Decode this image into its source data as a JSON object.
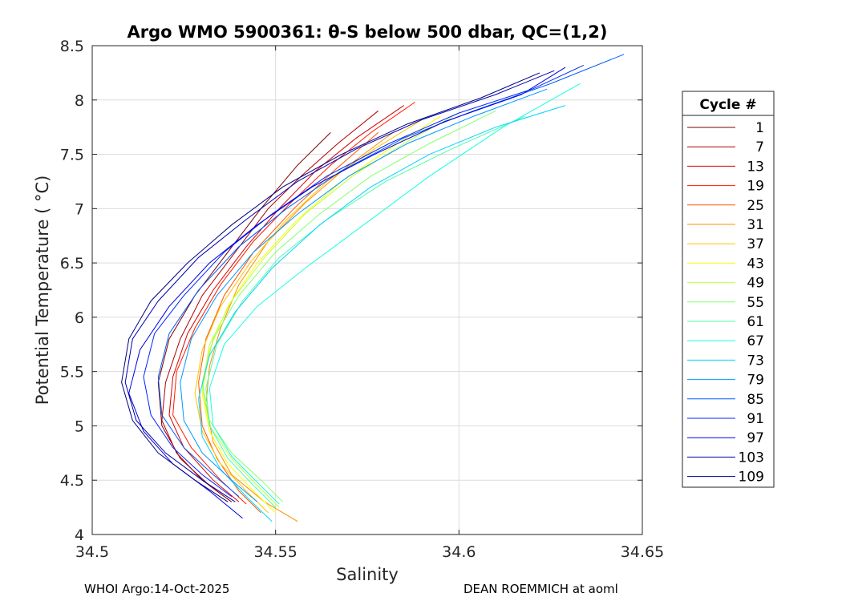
{
  "chart_data": {
    "type": "line",
    "title": "Argo WMO 5900361: θ-S below 500 dbar,  QC=(1,2)",
    "xlabel": "Salinity",
    "ylabel": "Potential Temperature ( °C)",
    "xlim": [
      34.5,
      34.65
    ],
    "ylim": [
      4,
      8.5
    ],
    "xticks": [
      34.5,
      34.55,
      34.6,
      34.65
    ],
    "xtick_labels": [
      "34.5",
      "34.55",
      "34.6",
      "34.65"
    ],
    "yticks": [
      4,
      4.5,
      5,
      5.5,
      6,
      6.5,
      7,
      7.5,
      8,
      8.5
    ],
    "ytick_labels": [
      "4",
      "4.5",
      "5",
      "5.5",
      "6",
      "6.5",
      "7",
      "7.5",
      "8",
      "8.5"
    ],
    "grid": true,
    "legend": {
      "title": "Cycle #",
      "position": "right",
      "entries": [
        {
          "label": "1",
          "color": "#7f0000"
        },
        {
          "label": "7",
          "color": "#b00000"
        },
        {
          "label": "13",
          "color": "#d80000"
        },
        {
          "label": "19",
          "color": "#ff1a00"
        },
        {
          "label": "25",
          "color": "#ff5500"
        },
        {
          "label": "31",
          "color": "#ff8c00"
        },
        {
          "label": "37",
          "color": "#ffc400"
        },
        {
          "label": "43",
          "color": "#f5ff00"
        },
        {
          "label": "49",
          "color": "#bfff3a"
        },
        {
          "label": "55",
          "color": "#86ff70"
        },
        {
          "label": "61",
          "color": "#4dffa8"
        },
        {
          "label": "67",
          "color": "#16ffe0"
        },
        {
          "label": "73",
          "color": "#00d4ff"
        },
        {
          "label": "79",
          "color": "#0098ff"
        },
        {
          "label": "85",
          "color": "#005cff"
        },
        {
          "label": "91",
          "color": "#0024ff"
        },
        {
          "label": "97",
          "color": "#0000e0"
        },
        {
          "label": "103",
          "color": "#0000b0"
        },
        {
          "label": "109",
          "color": "#00007f"
        }
      ]
    },
    "series": [
      {
        "name": "1",
        "color": "#7f0000",
        "x": [
          34.538,
          34.532,
          34.524,
          34.519,
          34.518,
          34.521,
          34.528,
          34.537,
          34.546,
          34.556,
          34.565
        ],
        "y": [
          4.3,
          4.45,
          4.7,
          5.0,
          5.4,
          5.8,
          6.2,
          6.6,
          7.0,
          7.4,
          7.7
        ]
      },
      {
        "name": "7",
        "color": "#b00000",
        "x": [
          34.536,
          34.53,
          34.523,
          34.519,
          34.52,
          34.524,
          34.53,
          34.539,
          34.548,
          34.557,
          34.567,
          34.578
        ],
        "y": [
          4.35,
          4.5,
          4.75,
          5.05,
          5.4,
          5.8,
          6.2,
          6.6,
          7.0,
          7.3,
          7.6,
          7.9
        ]
      },
      {
        "name": "13",
        "color": "#d80000",
        "x": [
          34.54,
          34.533,
          34.525,
          34.521,
          34.522,
          34.526,
          34.533,
          34.542,
          34.551,
          34.561,
          34.572,
          34.585
        ],
        "y": [
          4.3,
          4.5,
          4.8,
          5.1,
          5.45,
          5.85,
          6.25,
          6.65,
          7.0,
          7.35,
          7.65,
          7.95
        ]
      },
      {
        "name": "19",
        "color": "#ff1a00",
        "x": [
          34.542,
          34.535,
          34.527,
          34.522,
          34.523,
          34.528,
          34.535,
          34.544,
          34.554,
          34.565,
          34.576,
          34.588
        ],
        "y": [
          4.28,
          4.5,
          4.8,
          5.1,
          5.5,
          5.9,
          6.3,
          6.7,
          7.05,
          7.4,
          7.7,
          7.98
        ]
      },
      {
        "name": "25",
        "color": "#ff5500",
        "x": [
          34.546,
          34.54,
          34.534,
          34.53,
          34.529,
          34.531,
          34.536,
          34.544,
          34.555,
          34.566,
          34.578
        ],
        "y": [
          4.2,
          4.4,
          4.7,
          5.0,
          5.4,
          5.8,
          6.2,
          6.6,
          7.0,
          7.35,
          7.7
        ]
      },
      {
        "name": "31",
        "color": "#ff8c00",
        "x": [
          34.556,
          34.547,
          34.538,
          34.533,
          34.531,
          34.532,
          34.535,
          34.54,
          34.548,
          34.558,
          34.57,
          34.582
        ],
        "y": [
          4.12,
          4.3,
          4.55,
          4.85,
          5.2,
          5.55,
          5.9,
          6.3,
          6.7,
          7.05,
          7.4,
          7.7
        ]
      },
      {
        "name": "37",
        "color": "#ffc400",
        "x": [
          34.548,
          34.542,
          34.535,
          34.53,
          34.528,
          34.53,
          34.535,
          34.543,
          34.553,
          34.564,
          34.577,
          34.59
        ],
        "y": [
          4.2,
          4.4,
          4.65,
          4.95,
          5.3,
          5.7,
          6.1,
          6.5,
          6.9,
          7.25,
          7.55,
          7.82
        ]
      },
      {
        "name": "43",
        "color": "#f5ff00",
        "x": [
          34.55,
          34.544,
          34.537,
          34.532,
          34.53,
          34.532,
          34.537,
          34.545,
          34.556,
          34.568,
          34.581,
          34.595
        ],
        "y": [
          4.2,
          4.4,
          4.65,
          4.95,
          5.3,
          5.7,
          6.1,
          6.5,
          6.9,
          7.25,
          7.55,
          7.85
        ]
      },
      {
        "name": "49",
        "color": "#bfff3a",
        "x": [
          34.551,
          34.545,
          34.538,
          34.532,
          34.53,
          34.532,
          34.538,
          34.547,
          34.558,
          34.571,
          34.585,
          34.6
        ],
        "y": [
          4.25,
          4.45,
          4.7,
          5.0,
          5.35,
          5.75,
          6.15,
          6.55,
          6.95,
          7.3,
          7.6,
          7.88
        ]
      },
      {
        "name": "55",
        "color": "#86ff70",
        "x": [
          34.552,
          34.546,
          34.538,
          34.532,
          34.53,
          34.533,
          34.54,
          34.55,
          34.562,
          34.576,
          34.592,
          34.61
        ],
        "y": [
          4.3,
          4.5,
          4.75,
          5.05,
          5.4,
          5.8,
          6.2,
          6.6,
          6.95,
          7.3,
          7.6,
          7.9
        ]
      },
      {
        "name": "61",
        "color": "#4dffa8",
        "x": [
          34.55,
          34.544,
          34.537,
          34.532,
          34.531,
          34.534,
          34.541,
          34.551,
          34.564,
          34.58,
          34.598,
          34.618
        ],
        "y": [
          4.25,
          4.45,
          4.7,
          5.0,
          5.35,
          5.75,
          6.15,
          6.55,
          6.9,
          7.25,
          7.55,
          7.85
        ]
      },
      {
        "name": "67",
        "color": "#16ffe0",
        "x": [
          34.551,
          34.545,
          34.538,
          34.533,
          34.532,
          34.536,
          34.545,
          34.558,
          34.574,
          34.592,
          34.612,
          34.633
        ],
        "y": [
          4.28,
          4.48,
          4.72,
          5.0,
          5.35,
          5.75,
          6.1,
          6.45,
          6.85,
          7.3,
          7.75,
          8.15
        ]
      },
      {
        "name": "73",
        "color": "#00d4ff",
        "x": [
          34.549,
          34.542,
          34.535,
          34.53,
          34.529,
          34.532,
          34.539,
          34.549,
          34.562,
          34.576,
          34.592,
          34.61,
          34.629
        ],
        "y": [
          4.12,
          4.35,
          4.6,
          4.9,
          5.25,
          5.65,
          6.05,
          6.45,
          6.85,
          7.2,
          7.5,
          7.75,
          7.95
        ]
      },
      {
        "name": "79",
        "color": "#0098ff",
        "x": [
          34.545,
          34.538,
          34.53,
          34.525,
          34.524,
          34.527,
          34.534,
          34.544,
          34.556,
          34.57,
          34.586,
          34.604,
          34.624
        ],
        "y": [
          4.3,
          4.5,
          4.75,
          5.05,
          5.4,
          5.8,
          6.2,
          6.6,
          6.95,
          7.3,
          7.6,
          7.85,
          8.1
        ]
      },
      {
        "name": "85",
        "color": "#005cff",
        "x": [
          34.54,
          34.533,
          34.525,
          34.519,
          34.518,
          34.521,
          34.529,
          34.54,
          34.553,
          34.568,
          34.585,
          34.604,
          34.625,
          34.645
        ],
        "y": [
          4.35,
          4.55,
          4.8,
          5.1,
          5.45,
          5.85,
          6.25,
          6.65,
          7.0,
          7.35,
          7.65,
          7.9,
          8.15,
          8.42
        ]
      },
      {
        "name": "91",
        "color": "#0024ff",
        "x": [
          34.538,
          34.53,
          34.522,
          34.516,
          34.514,
          34.517,
          34.525,
          34.536,
          34.549,
          34.564,
          34.581,
          34.6,
          34.62,
          34.634
        ],
        "y": [
          4.35,
          4.55,
          4.8,
          5.1,
          5.45,
          5.85,
          6.2,
          6.6,
          6.95,
          7.3,
          7.6,
          7.88,
          8.1,
          8.32
        ]
      },
      {
        "name": "97",
        "color": "#0000e0",
        "x": [
          34.541,
          34.532,
          34.522,
          34.514,
          34.51,
          34.513,
          34.521,
          34.532,
          34.545,
          34.56,
          34.577,
          34.596,
          34.617,
          34.629
        ],
        "y": [
          4.15,
          4.4,
          4.65,
          4.95,
          5.3,
          5.7,
          6.1,
          6.5,
          6.85,
          7.2,
          7.5,
          7.8,
          8.05,
          8.3
        ]
      },
      {
        "name": "103",
        "color": "#0000b0",
        "x": [
          34.539,
          34.53,
          34.52,
          34.512,
          34.509,
          34.511,
          34.518,
          34.529,
          34.542,
          34.556,
          34.572,
          34.59,
          34.61,
          34.626
        ],
        "y": [
          4.3,
          4.5,
          4.75,
          5.05,
          5.4,
          5.8,
          6.15,
          6.55,
          6.9,
          7.25,
          7.55,
          7.82,
          8.05,
          8.27
        ]
      },
      {
        "name": "109",
        "color": "#00007f",
        "x": [
          34.537,
          34.528,
          34.518,
          34.511,
          34.508,
          34.51,
          34.516,
          34.526,
          34.538,
          34.552,
          34.568,
          34.586,
          34.606,
          34.622
        ],
        "y": [
          4.3,
          4.5,
          4.75,
          5.05,
          5.4,
          5.8,
          6.15,
          6.5,
          6.85,
          7.2,
          7.5,
          7.78,
          8.02,
          8.25
        ]
      }
    ]
  },
  "footer": {
    "left": "WHOI Argo:14-Oct-2025",
    "right": "DEAN ROEMMICH at aoml"
  }
}
